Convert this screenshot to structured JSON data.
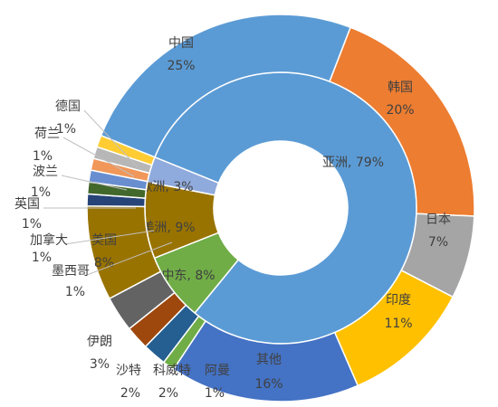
{
  "chart_data": {
    "type": "donut",
    "series": [
      {
        "values": [
          79,
          8,
          9,
          3
        ],
        "value_labels": [
          "亚洲, 79%",
          "中东, 8%",
          "美洲, 9%",
          "欧洲, 3%"
        ],
        "colors": [
          "#5b9bd5",
          "#70ad47",
          "#997300",
          "#8faadc"
        ]
      },
      {
        "categories": [
          "中国",
          "韩国",
          "日本",
          "印度",
          "其他",
          "阿曼",
          "科威特",
          "沙特",
          "伊朗",
          "美国",
          "墨西哥",
          "加拿大",
          "英国",
          "波兰",
          "荷兰",
          "德国"
        ],
        "values": [
          25,
          20,
          7,
          11,
          16,
          1,
          2,
          2,
          3,
          8,
          1,
          1,
          1,
          1,
          1,
          1
        ],
        "value_labels": [
          "25%",
          "20%",
          "7%",
          "11%",
          "16%",
          "1%",
          "2%",
          "2%",
          "3%",
          "8%",
          "1%",
          "1%",
          "1%",
          "1%",
          "1%",
          "1%"
        ],
        "colors": [
          "#5b9bd5",
          "#ed7d31",
          "#a5a5a5",
          "#ffc000",
          "#4472c4",
          "#70ad47",
          "#255e91",
          "#9e480e",
          "#636363",
          "#997300",
          "#264478",
          "#43682b",
          "#698ed0",
          "#f1975a",
          "#b7b7b7",
          "#ffcd33"
        ]
      }
    ]
  }
}
